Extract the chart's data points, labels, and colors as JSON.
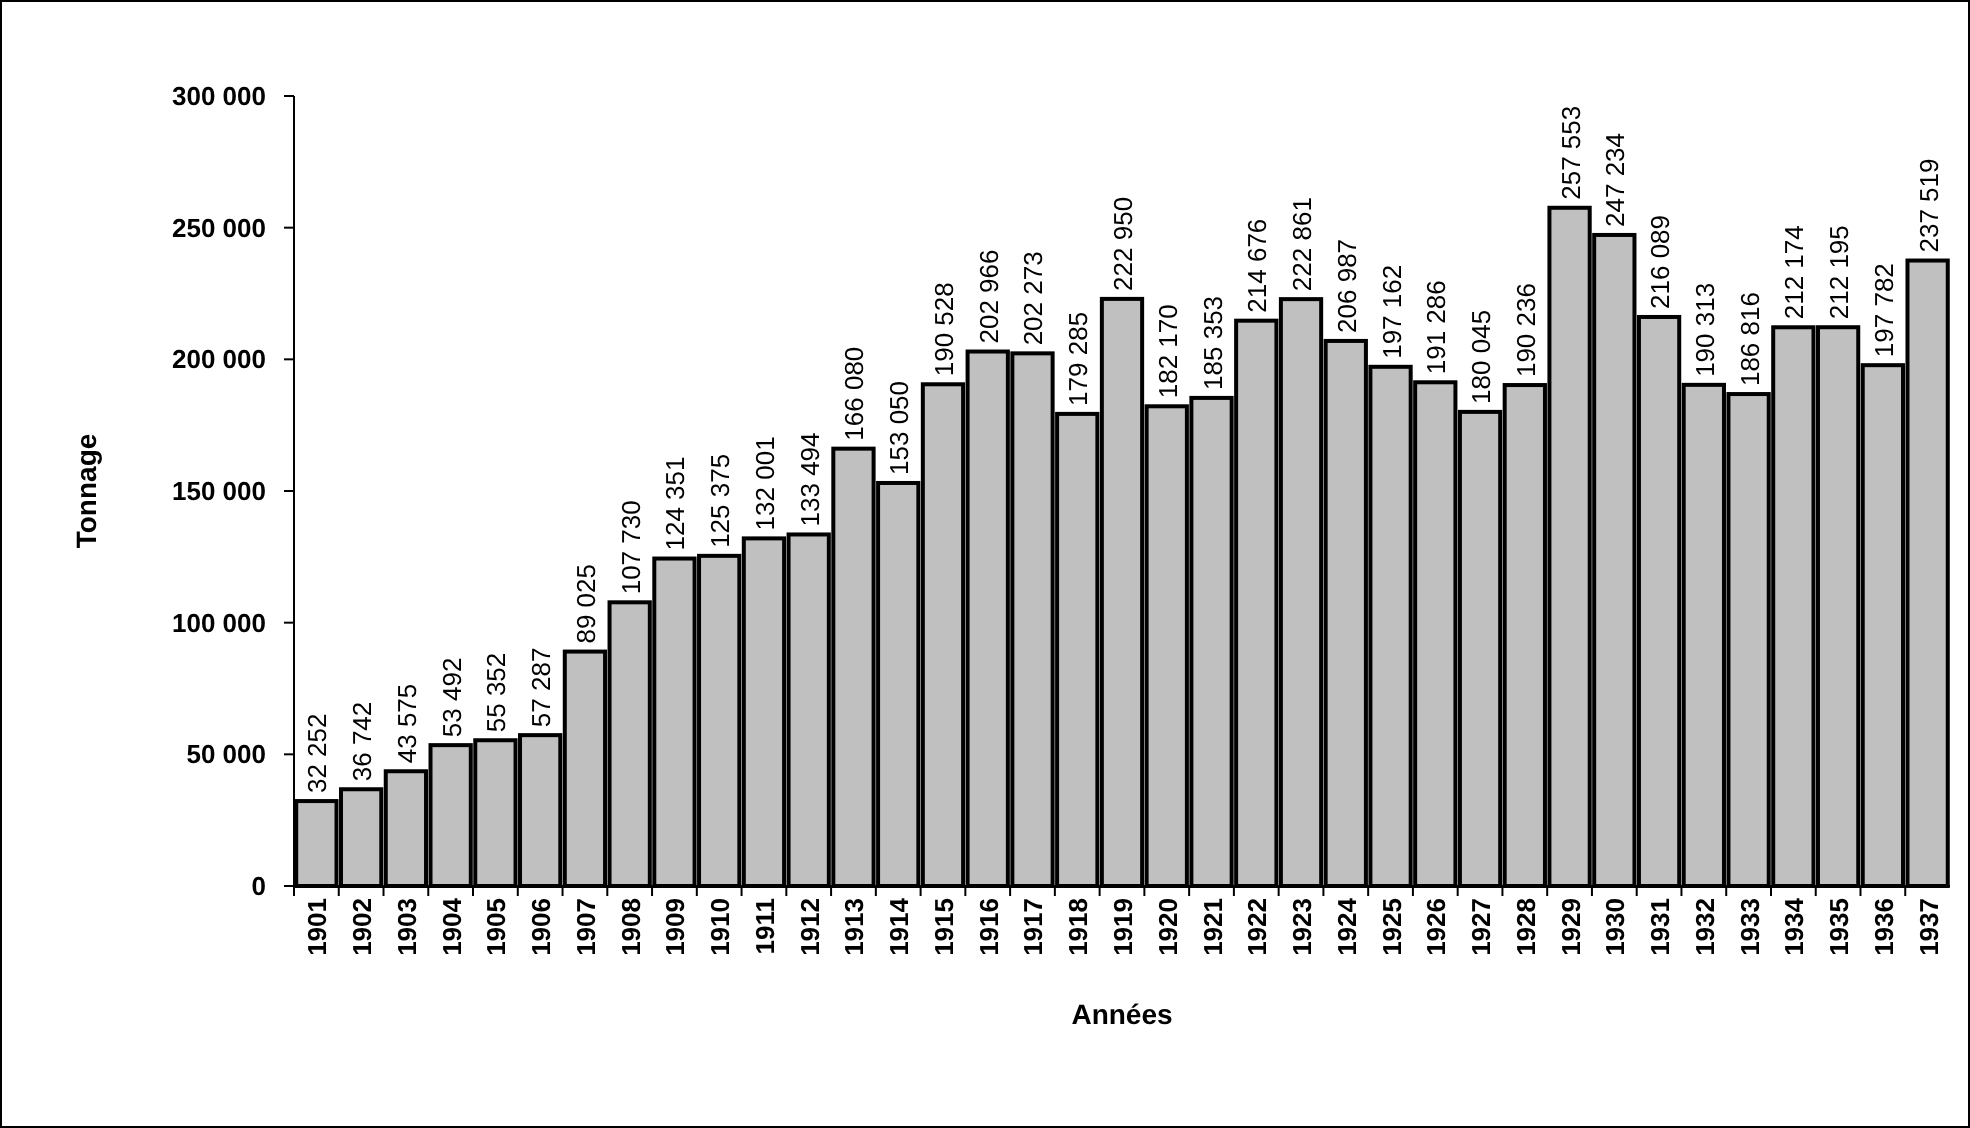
{
  "chart_data": {
    "type": "bar",
    "xlabel": "Années",
    "ylabel": "Tonnage",
    "categories": [
      "1901",
      "1902",
      "1903",
      "1904",
      "1905",
      "1906",
      "1907",
      "1908",
      "1909",
      "1910",
      "1911",
      "1912",
      "1913",
      "1914",
      "1915",
      "1916",
      "1917",
      "1918",
      "1919",
      "1920",
      "1921",
      "1922",
      "1923",
      "1924",
      "1925",
      "1926",
      "1927",
      "1928",
      "1929",
      "1930",
      "1931",
      "1932",
      "1933",
      "1934",
      "1935",
      "1936",
      "1937"
    ],
    "values": [
      32252,
      36742,
      43575,
      53492,
      55352,
      57287,
      89025,
      107730,
      124351,
      125375,
      132001,
      133494,
      166080,
      153050,
      190528,
      202966,
      202273,
      179285,
      222950,
      182170,
      185353,
      214676,
      222861,
      206987,
      197162,
      191286,
      180045,
      190236,
      257553,
      247234,
      216089,
      190313,
      186816,
      212174,
      212195,
      197782,
      237519
    ],
    "color": "#c0c0c0",
    "ylim": [
      0,
      300000
    ],
    "yticks": [
      0,
      {
        "value": 50000,
        "label": "50 000"
      },
      {
        "value": 100000,
        "label": "100 000"
      },
      {
        "value": 150000,
        "label": "150 000"
      },
      {
        "value": 200000,
        "label": "200 000"
      },
      {
        "value": 250000,
        "label": "250 000"
      },
      {
        "value": 300000,
        "label": "300 000"
      }
    ],
    "data_labels": true
  }
}
